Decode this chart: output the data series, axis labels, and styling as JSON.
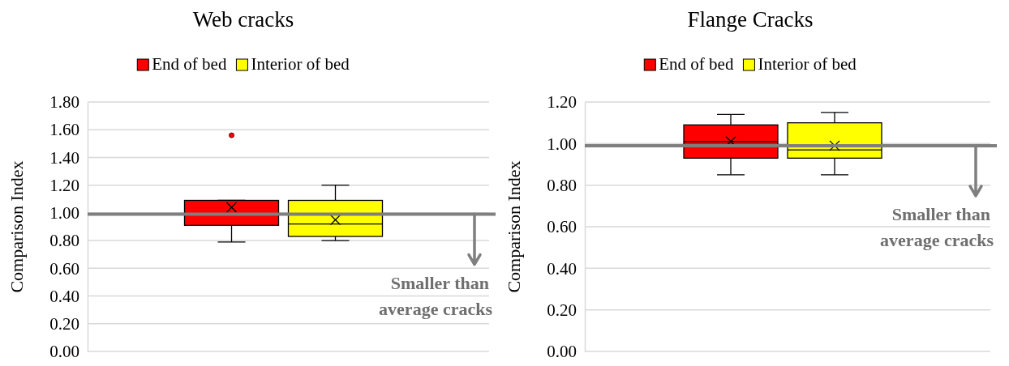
{
  "chart_data": [
    {
      "type": "box",
      "title": "Web cracks",
      "ylabel": "Comparison Index",
      "categories": [
        null
      ],
      "ylim": [
        0,
        1.8
      ],
      "yticks": [
        {
          "value": 0,
          "label": "0.00"
        },
        {
          "value": 0.2,
          "label": "0.20"
        },
        {
          "value": 0.4,
          "label": "0.40"
        },
        {
          "value": 0.6,
          "label": "0.60"
        },
        {
          "value": 0.8,
          "label": "0.80"
        },
        {
          "value": 1,
          "label": "1.00"
        },
        {
          "value": 1.2,
          "label": "1.20"
        },
        {
          "value": 1.4,
          "label": "1.40"
        },
        {
          "value": 1.6,
          "label": "1.60"
        },
        {
          "value": 1.8,
          "label": "1.80"
        }
      ],
      "grid": "y",
      "legend": "top",
      "marker": "cross",
      "series": [
        {
          "name": "End of bed",
          "color": "#ff0000",
          "boxes": [
            {
              "low": 0.79,
              "q1": 0.91,
              "median": 0.99,
              "q3": 1.09,
              "high": 1.09,
              "mean": 1.04,
              "outliers": [
                1.56
              ]
            }
          ]
        },
        {
          "name": "Interior of bed",
          "color": "#ffff00",
          "boxes": [
            {
              "low": 0.8,
              "q1": 0.83,
              "median": 0.92,
              "q3": 1.09,
              "high": 1.2,
              "mean": 0.95
            }
          ]
        }
      ],
      "ref_lines": [
        {
          "axis": "y",
          "value": 0.99,
          "color": "#7f7f7f"
        }
      ],
      "annotations": [
        "Smaller than average cracks"
      ]
    },
    {
      "type": "box",
      "title": "Flange Cracks",
      "ylabel": "Comparison Index",
      "categories": [
        null
      ],
      "ylim": [
        0,
        1.2
      ],
      "yticks": [
        {
          "value": 0,
          "label": "0.00"
        },
        {
          "value": 0.2,
          "label": "0.20"
        },
        {
          "value": 0.4,
          "label": "0.40"
        },
        {
          "value": 0.6,
          "label": "0.60"
        },
        {
          "value": 0.8,
          "label": "0.80"
        },
        {
          "value": 1,
          "label": "1.00"
        },
        {
          "value": 1.2,
          "label": "1.20"
        }
      ],
      "grid": "y",
      "legend": "top",
      "marker": "cross",
      "series": [
        {
          "name": "End of bed",
          "color": "#ff0000",
          "boxes": [
            {
              "low": 0.85,
              "q1": 0.93,
              "median": 1.01,
              "q3": 1.09,
              "high": 1.14,
              "mean": 1.01
            }
          ]
        },
        {
          "name": "Interior of bed",
          "color": "#ffff00",
          "boxes": [
            {
              "low": 0.85,
              "q1": 0.93,
              "median": 0.97,
              "q3": 1.1,
              "high": 1.15,
              "mean": 0.99
            }
          ]
        }
      ],
      "ref_lines": [
        {
          "axis": "y",
          "value": 0.99,
          "color": "#7f7f7f"
        }
      ],
      "annotations": [
        "Smaller than average cracks"
      ]
    }
  ]
}
